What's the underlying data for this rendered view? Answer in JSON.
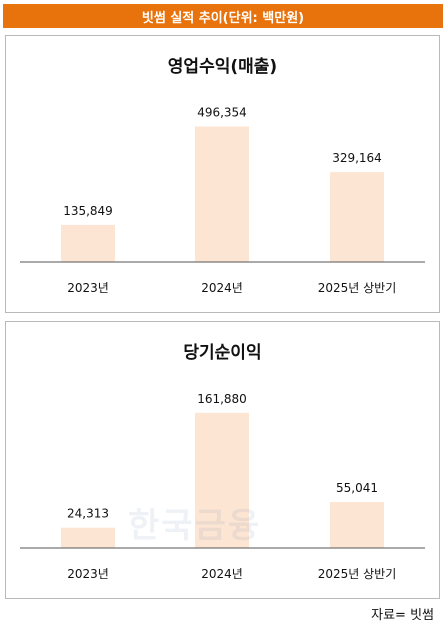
{
  "header": {
    "title": "빗썸 실적 추이(단위: 백만원)"
  },
  "colors": {
    "banner": "#e8720c",
    "bar": "#fde5d3",
    "axis": "#555555"
  },
  "chart_data": [
    {
      "type": "bar",
      "title": "영업수익(매출)",
      "categories": [
        "2023년",
        "2024년",
        "2025년 상반기"
      ],
      "values": [
        135849,
        496354,
        329164
      ],
      "value_labels": [
        "135,849",
        "496,354",
        "329,164"
      ],
      "ylim": [
        0,
        520000
      ],
      "grid": false
    },
    {
      "type": "bar",
      "title": "당기순이익",
      "categories": [
        "2023년",
        "2024년",
        "2025년 상반기"
      ],
      "values": [
        24313,
        161880,
        55041
      ],
      "value_labels": [
        "24,313",
        "161,880",
        "55,041"
      ],
      "ylim": [
        0,
        170000
      ],
      "grid": false
    }
  ],
  "watermark": "한국금융",
  "source": "자료= 빗썸"
}
